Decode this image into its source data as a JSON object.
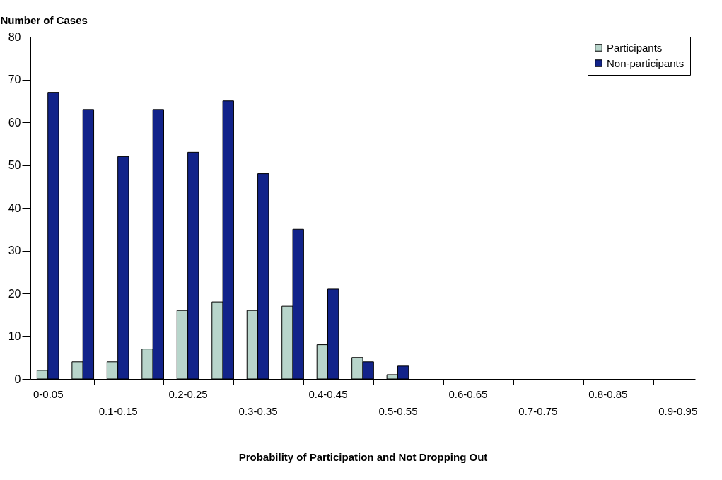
{
  "chart_data": {
    "type": "bar",
    "xlabel": "Probability of Participation and Not Dropping Out",
    "ylabel": "Number of Cases",
    "categories": [
      "0-0.05",
      null,
      "0.1-0.15",
      null,
      "0.2-0.25",
      null,
      "0.3-0.35",
      null,
      "0.4-0.45",
      null,
      "0.5-0.55",
      null,
      "0.6-0.65",
      null,
      "0.7-0.75",
      null,
      "0.8-0.85",
      null,
      "0.9-0.95"
    ],
    "series": [
      {
        "name": "Participants",
        "color": "#b8d5cb",
        "values": [
          2,
          4,
          4,
          7,
          16,
          18,
          16,
          17,
          8,
          5,
          1,
          null,
          null,
          null,
          null,
          null,
          null,
          null,
          null
        ]
      },
      {
        "name": "Non-participants",
        "color": "#12238a",
        "values": [
          67,
          63,
          52,
          63,
          53,
          65,
          48,
          35,
          21,
          4,
          3,
          null,
          null,
          null,
          null,
          null,
          null,
          null,
          null
        ]
      }
    ],
    "ylim": [
      0,
      80
    ],
    "yticks": [
      0,
      10,
      20,
      30,
      40,
      50,
      60,
      70,
      80
    ],
    "legend": "top right"
  }
}
